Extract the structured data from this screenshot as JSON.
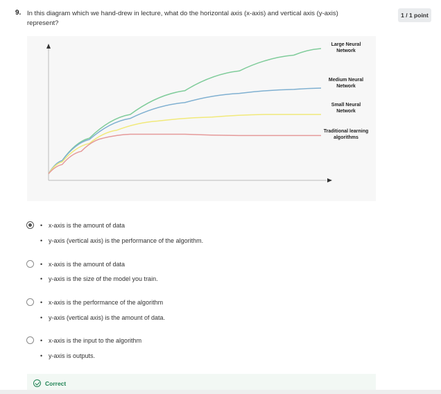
{
  "question": {
    "number": "9.",
    "text": "In this diagram which we hand-drew in lecture, what do the horizontal axis (x-axis) and vertical axis (y-axis) represent?",
    "points": "1 / 1 point"
  },
  "chart_data": {
    "type": "line",
    "title": "",
    "xlabel": "",
    "ylabel": "",
    "series": [
      {
        "name": "Large Neural Network",
        "color": "#7fcc9a",
        "values": [
          [
            0,
            0.05
          ],
          [
            0.05,
            0.15
          ],
          [
            0.15,
            0.32
          ],
          [
            0.3,
            0.5
          ],
          [
            0.5,
            0.68
          ],
          [
            0.7,
            0.83
          ],
          [
            0.9,
            0.95
          ],
          [
            1,
            1.0
          ]
        ]
      },
      {
        "name": "Medium Neural Network",
        "color": "#7fb0d1",
        "values": [
          [
            0,
            0.05
          ],
          [
            0.05,
            0.15
          ],
          [
            0.15,
            0.31
          ],
          [
            0.3,
            0.47
          ],
          [
            0.5,
            0.59
          ],
          [
            0.7,
            0.66
          ],
          [
            0.9,
            0.69
          ],
          [
            1,
            0.7
          ]
        ]
      },
      {
        "name": "Small Neural Network",
        "color": "#f1e97a",
        "values": [
          [
            0,
            0.05
          ],
          [
            0.05,
            0.14
          ],
          [
            0.15,
            0.28
          ],
          [
            0.25,
            0.38
          ],
          [
            0.4,
            0.45
          ],
          [
            0.6,
            0.48
          ],
          [
            0.8,
            0.5
          ],
          [
            1,
            0.5
          ]
        ]
      },
      {
        "name": "Traditional learning algorithms",
        "color": "#e59a9a",
        "values": [
          [
            0,
            0.05
          ],
          [
            0.05,
            0.12
          ],
          [
            0.12,
            0.22
          ],
          [
            0.2,
            0.32
          ],
          [
            0.3,
            0.35
          ],
          [
            0.5,
            0.35
          ],
          [
            0.7,
            0.34
          ],
          [
            1,
            0.34
          ]
        ]
      }
    ]
  },
  "options": [
    {
      "checked": true,
      "lines": [
        "x-axis is the amount of data",
        "y-axis (vertical axis) is the performance of the algorithm."
      ]
    },
    {
      "checked": false,
      "lines": [
        "x-axis is the amount of data",
        "y-axis is the size of the model you train."
      ]
    },
    {
      "checked": false,
      "lines": [
        "x-axis is the performance of the algorithm",
        "y-axis (vertical axis) is the amount of data."
      ]
    },
    {
      "checked": false,
      "lines": [
        "x-axis is the input to the algorithm",
        "y-axis is outputs."
      ]
    }
  ],
  "feedback": {
    "status": "Correct"
  }
}
